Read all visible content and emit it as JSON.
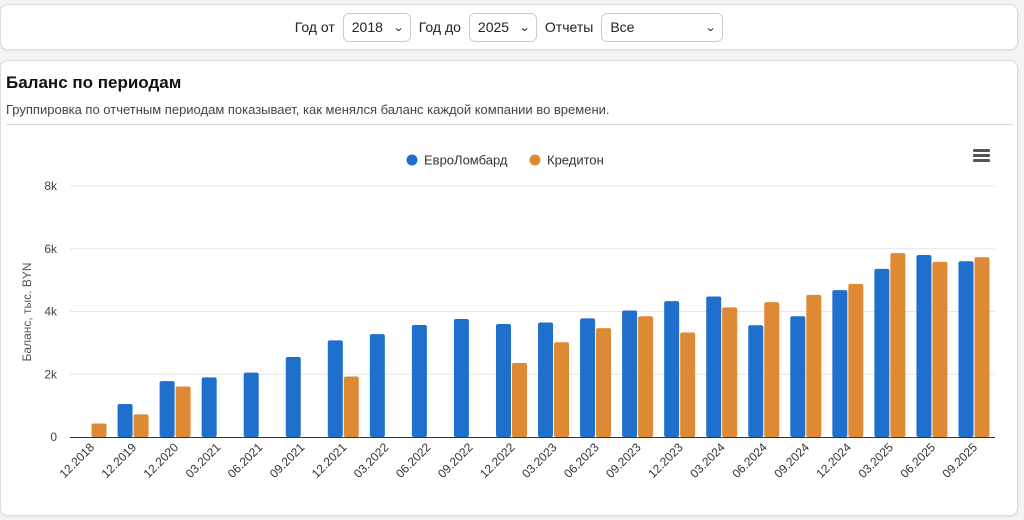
{
  "filters": {
    "year_from_label": "Год от",
    "year_from_value": "2018",
    "year_to_label": "Год до",
    "year_to_value": "2025",
    "reports_label": "Отчеты",
    "reports_value": "Все"
  },
  "card": {
    "title": "Баланс по периодам",
    "subtitle": "Группировка по отчетным периодам показывает, как менялся баланс каждой компании во времени."
  },
  "colors": {
    "series1": "#1f6fcc",
    "series2": "#de8a34",
    "grid": "#e6e6e6",
    "axis": "#333333"
  },
  "icons": {
    "menu": "hamburger-menu-icon"
  },
  "chart_data": {
    "type": "bar",
    "title": "",
    "xlabel": "",
    "ylabel": "Баланс, тыс. BYN",
    "ylim": [
      0,
      8000
    ],
    "yticks": [
      0,
      2000,
      4000,
      6000,
      8000
    ],
    "ytick_labels": [
      "0",
      "2k",
      "4k",
      "6k",
      "8k"
    ],
    "legend_position": "top-center",
    "grid": true,
    "categories": [
      "12.2018",
      "12.2019",
      "12.2020",
      "03.2021",
      "06.2021",
      "09.2021",
      "12.2021",
      "03.2022",
      "06.2022",
      "09.2022",
      "12.2022",
      "03.2023",
      "06.2023",
      "09.2023",
      "12.2023",
      "03.2024",
      "06.2024",
      "09.2024",
      "12.2024",
      "03.2025",
      "06.2025",
      "09.2025"
    ],
    "series": [
      {
        "name": "ЕвроЛомбард",
        "values": [
          null,
          1050,
          1780,
          1900,
          2050,
          2550,
          3080,
          3280,
          3570,
          3760,
          3600,
          3650,
          3780,
          4030,
          4330,
          4480,
          3560,
          3850,
          4680,
          5360,
          5800,
          5600
        ]
      },
      {
        "name": "Кредитон",
        "values": [
          430,
          720,
          1610,
          null,
          null,
          null,
          1930,
          null,
          null,
          null,
          2360,
          3020,
          3470,
          3850,
          3330,
          4130,
          4300,
          4530,
          4880,
          5860,
          5580,
          5730
        ]
      }
    ]
  }
}
